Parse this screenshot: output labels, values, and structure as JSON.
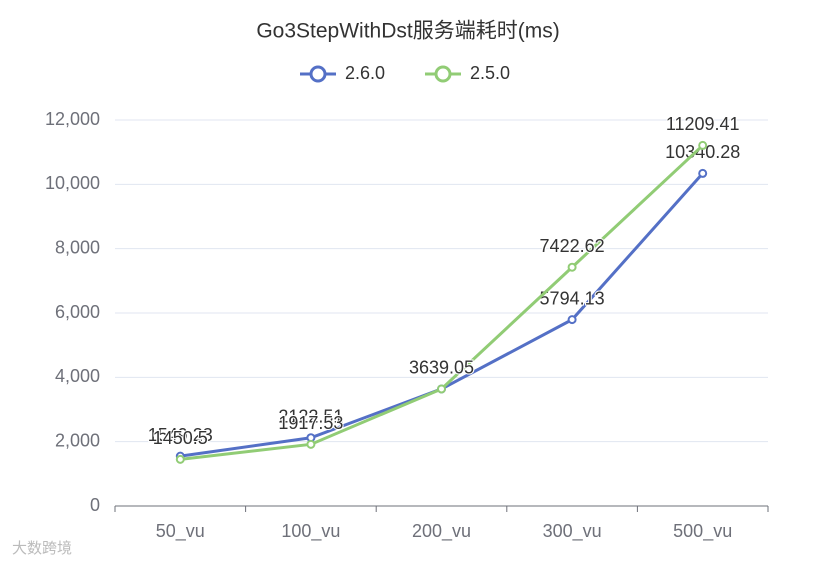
{
  "chart_data": {
    "type": "line",
    "title": "Go3StepWithDst服务端耗时(ms)",
    "categories": [
      "50_vu",
      "100_vu",
      "200_vu",
      "300_vu",
      "500_vu"
    ],
    "series": [
      {
        "name": "2.6.0",
        "color": "#5470c6",
        "values": [
          1549.23,
          2122.51,
          3639.05,
          5794.13,
          10340.28
        ]
      },
      {
        "name": "2.5.0",
        "color": "#91cc75",
        "values": [
          1450.5,
          1917.53,
          3639.05,
          7422.62,
          11209.41
        ]
      }
    ],
    "ylim": [
      0,
      12000
    ],
    "yticks": [
      0,
      {
        "value": 2000,
        "label": "2,000"
      },
      {
        "value": 4000,
        "label": "4,000"
      },
      {
        "value": 6000,
        "label": "6,000"
      },
      {
        "value": 8000,
        "label": "8,000"
      },
      {
        "value": 10000,
        "label": "10,000"
      },
      {
        "value": 12000,
        "label": "12,000"
      }
    ],
    "grid": true,
    "legend": "top"
  },
  "watermark": "大数跨境"
}
